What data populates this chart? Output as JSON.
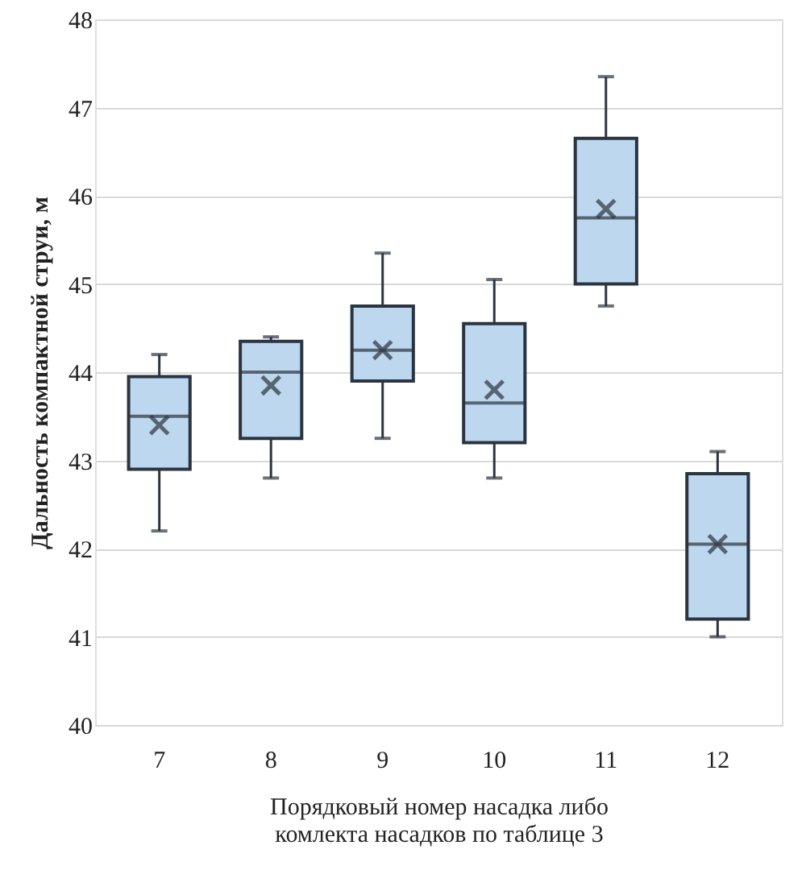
{
  "chart_data": {
    "type": "box",
    "ylabel": "Дальность компактной струи, м",
    "xlabel": "Порядковый номер насадка либо комлекта насадков по таблице 3",
    "categories": [
      "7",
      "8",
      "9",
      "10",
      "11",
      "12"
    ],
    "boxes": [
      {
        "low": 42.2,
        "q1": 42.9,
        "median": 43.5,
        "q3": 43.95,
        "high": 44.2,
        "mean": 43.4
      },
      {
        "low": 42.8,
        "q1": 43.25,
        "median": 44.0,
        "q3": 44.35,
        "high": 44.4,
        "mean": 43.85
      },
      {
        "low": 43.25,
        "q1": 43.9,
        "median": 44.25,
        "q3": 44.75,
        "high": 45.35,
        "mean": 44.25
      },
      {
        "low": 42.8,
        "q1": 43.2,
        "median": 43.65,
        "q3": 44.55,
        "high": 45.05,
        "mean": 43.8
      },
      {
        "low": 44.75,
        "q1": 45.0,
        "median": 45.75,
        "q3": 46.65,
        "high": 47.35,
        "mean": 45.85
      },
      {
        "low": 41.0,
        "q1": 41.2,
        "median": 42.05,
        "q3": 42.85,
        "high": 43.1,
        "mean": 42.05
      }
    ],
    "color": "#bdd7ee",
    "ylim": [
      40,
      48
    ],
    "yticks": [
      40,
      41,
      42,
      43,
      44,
      45,
      46,
      47,
      48
    ],
    "grid": "y"
  }
}
